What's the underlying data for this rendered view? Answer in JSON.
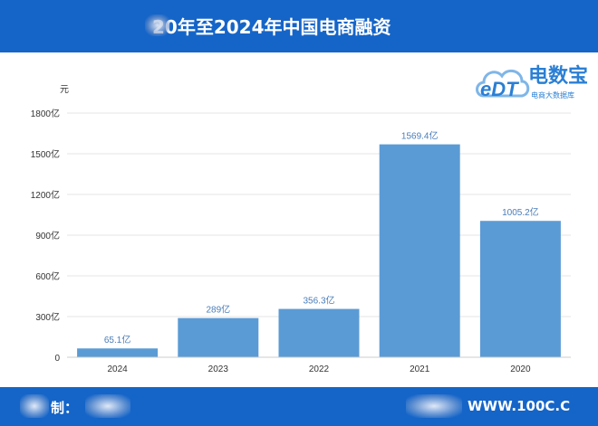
{
  "header": {
    "title": "20年至2024年中国电商融资"
  },
  "logo": {
    "name": "电数宝",
    "mark": "eDT",
    "tagline": "电商大数据库"
  },
  "footer": {
    "source_prefix": "制：",
    "website": "WWW.100C.C"
  },
  "chart_data": {
    "type": "bar",
    "unit": "元",
    "categories": [
      "2024",
      "2023",
      "2022",
      "2021",
      "2020"
    ],
    "values": [
      65.1,
      289,
      356.3,
      1569.4,
      1005.2
    ],
    "data_labels": [
      "65.1亿",
      "289亿",
      "356.3亿",
      "1569.4亿",
      "1005.2亿"
    ],
    "yticks": [
      0,
      300,
      600,
      900,
      1200,
      1500,
      1800
    ],
    "ytick_labels": [
      "0",
      "300亿",
      "600亿",
      "900亿",
      "1200亿",
      "1500亿",
      "1800亿"
    ],
    "ylim": [
      0,
      1800
    ],
    "grid": true,
    "bar_color": "#5b9bd5",
    "label_color": "#4a7db8"
  }
}
